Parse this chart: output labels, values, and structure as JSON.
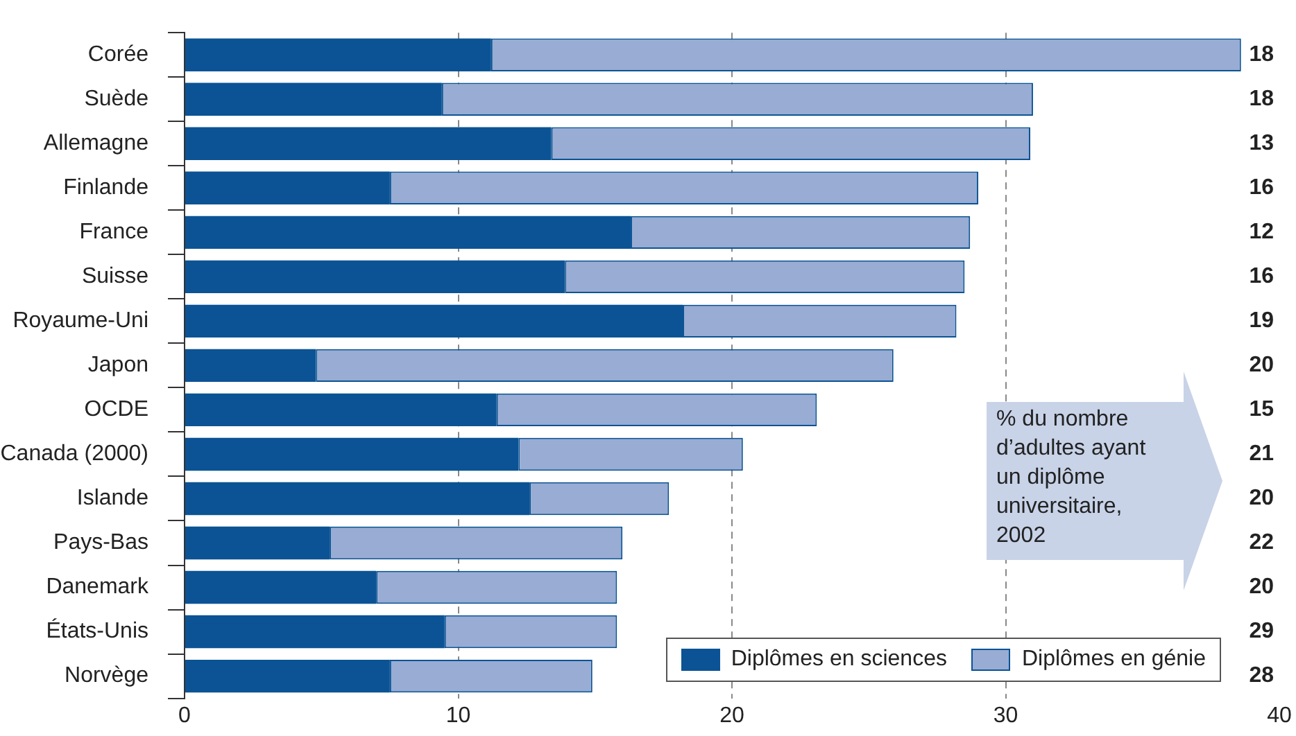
{
  "chart_data": {
    "type": "bar",
    "orientation": "horizontal",
    "stacked": true,
    "categories": [
      "Corée",
      "Suède",
      "Allemagne",
      "Finlande",
      "France",
      "Suisse",
      "Royaume-Uni",
      "Japon",
      "OCDE",
      "Canada (2000)",
      "Islande",
      "Pays-Bas",
      "Danemark",
      "États-Unis",
      "Norvège"
    ],
    "series": [
      {
        "name": "Diplômes en sciences",
        "color": "#0b5394",
        "values": [
          11.2,
          9.4,
          13.4,
          7.5,
          16.3,
          13.9,
          18.2,
          4.8,
          11.4,
          12.2,
          12.6,
          5.3,
          7.0,
          9.5,
          7.5
        ]
      },
      {
        "name": "Diplômes en génie",
        "color": "#98acd4",
        "values": [
          27.4,
          21.6,
          17.5,
          21.5,
          12.4,
          14.6,
          10.0,
          21.1,
          11.7,
          8.2,
          5.1,
          10.7,
          8.8,
          6.3,
          7.4
        ]
      }
    ],
    "xlim": [
      0,
      40
    ],
    "xticks": [
      0,
      10,
      20,
      30,
      40
    ],
    "grid": "x",
    "legend": "bottom right",
    "annotations": [
      "18",
      "18",
      "13",
      "16",
      "12",
      "16",
      "19",
      "20",
      "15",
      "21",
      "20",
      "22",
      "20",
      "29",
      "28",
      "% du nombre d’adultes ayant un diplôme universitaire, 2002"
    ]
  }
}
